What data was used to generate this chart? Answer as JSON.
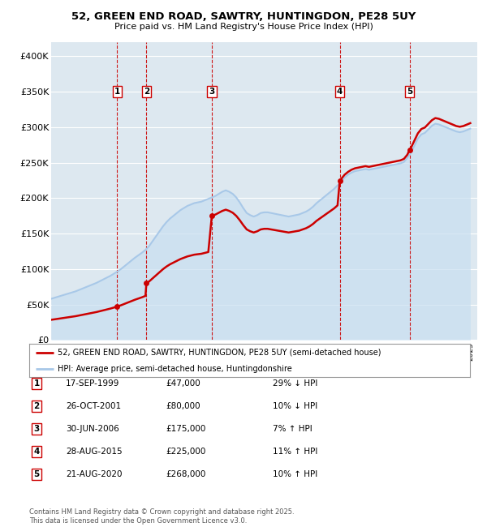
{
  "title": "52, GREEN END ROAD, SAWTRY, HUNTINGDON, PE28 5UY",
  "subtitle": "Price paid vs. HM Land Registry's House Price Index (HPI)",
  "legend_property": "52, GREEN END ROAD, SAWTRY, HUNTINGDON, PE28 5UY (semi-detached house)",
  "legend_hpi": "HPI: Average price, semi-detached house, Huntingdonshire",
  "footnote": "Contains HM Land Registry data © Crown copyright and database right 2025.\nThis data is licensed under the Open Government Licence v3.0.",
  "property_color": "#cc0000",
  "hpi_color": "#a8c8e8",
  "hpi_fill_color": "#c8dff0",
  "background_color": "#dde8f0",
  "ylim": [
    0,
    420000
  ],
  "yticks": [
    0,
    50000,
    100000,
    150000,
    200000,
    250000,
    300000,
    350000,
    400000
  ],
  "ytick_labels": [
    "£0",
    "£50K",
    "£100K",
    "£150K",
    "£200K",
    "£250K",
    "£300K",
    "£350K",
    "£400K"
  ],
  "transactions": [
    {
      "num": 1,
      "date": "17-SEP-1999",
      "price": 47000,
      "pct": "29%",
      "dir": "↓",
      "year": 1999.72
    },
    {
      "num": 2,
      "date": "26-OCT-2001",
      "price": 80000,
      "pct": "10%",
      "dir": "↓",
      "year": 2001.82
    },
    {
      "num": 3,
      "date": "30-JUN-2006",
      "price": 175000,
      "pct": "7%",
      "dir": "↑",
      "year": 2006.5
    },
    {
      "num": 4,
      "date": "28-AUG-2015",
      "price": 225000,
      "pct": "11%",
      "dir": "↑",
      "year": 2015.66
    },
    {
      "num": 5,
      "date": "21-AUG-2020",
      "price": 268000,
      "pct": "10%",
      "dir": "↑",
      "year": 2020.65
    }
  ],
  "hpi_years": [
    1995.0,
    1995.25,
    1995.5,
    1995.75,
    1996.0,
    1996.25,
    1996.5,
    1996.75,
    1997.0,
    1997.25,
    1997.5,
    1997.75,
    1998.0,
    1998.25,
    1998.5,
    1998.75,
    1999.0,
    1999.25,
    1999.5,
    1999.75,
    2000.0,
    2000.25,
    2000.5,
    2000.75,
    2001.0,
    2001.25,
    2001.5,
    2001.75,
    2002.0,
    2002.25,
    2002.5,
    2002.75,
    2003.0,
    2003.25,
    2003.5,
    2003.75,
    2004.0,
    2004.25,
    2004.5,
    2004.75,
    2005.0,
    2005.25,
    2005.5,
    2005.75,
    2006.0,
    2006.25,
    2006.5,
    2006.75,
    2007.0,
    2007.25,
    2007.5,
    2007.75,
    2008.0,
    2008.25,
    2008.5,
    2008.75,
    2009.0,
    2009.25,
    2009.5,
    2009.75,
    2010.0,
    2010.25,
    2010.5,
    2010.75,
    2011.0,
    2011.25,
    2011.5,
    2011.75,
    2012.0,
    2012.25,
    2012.5,
    2012.75,
    2013.0,
    2013.25,
    2013.5,
    2013.75,
    2014.0,
    2014.25,
    2014.5,
    2014.75,
    2015.0,
    2015.25,
    2015.5,
    2015.75,
    2016.0,
    2016.25,
    2016.5,
    2016.75,
    2017.0,
    2017.25,
    2017.5,
    2017.75,
    2018.0,
    2018.25,
    2018.5,
    2018.75,
    2019.0,
    2019.25,
    2019.5,
    2019.75,
    2020.0,
    2020.25,
    2020.5,
    2020.75,
    2021.0,
    2021.25,
    2021.5,
    2021.75,
    2022.0,
    2022.25,
    2022.5,
    2022.75,
    2023.0,
    2023.25,
    2023.5,
    2023.75,
    2024.0,
    2024.25,
    2024.5,
    2024.75,
    2025.0
  ],
  "hpi_values": [
    58000,
    59500,
    61000,
    62500,
    64000,
    65500,
    67000,
    68500,
    70500,
    72500,
    74500,
    76500,
    78500,
    80500,
    83000,
    85500,
    88000,
    90500,
    93500,
    96500,
    100000,
    104000,
    108000,
    112000,
    116000,
    119500,
    123000,
    127000,
    132000,
    139000,
    146000,
    153000,
    160000,
    166000,
    171000,
    175000,
    179000,
    183000,
    186000,
    189000,
    191000,
    193000,
    194000,
    195000,
    197000,
    199000,
    201000,
    203000,
    206000,
    209000,
    211000,
    209000,
    206000,
    201000,
    194000,
    186000,
    179000,
    176000,
    174000,
    176000,
    179000,
    180000,
    180000,
    179000,
    178000,
    177000,
    176000,
    175000,
    174000,
    175000,
    176000,
    177000,
    179000,
    181000,
    184000,
    188000,
    193000,
    197000,
    201000,
    205000,
    209000,
    213000,
    218000,
    223000,
    229000,
    233000,
    236000,
    238000,
    239000,
    240000,
    241000,
    240000,
    241000,
    242000,
    243000,
    244000,
    245000,
    246000,
    247000,
    248000,
    249000,
    251000,
    257000,
    264000,
    274000,
    284000,
    290000,
    292000,
    297000,
    302000,
    305000,
    304000,
    302000,
    300000,
    298000,
    296000,
    294000,
    293000,
    294000,
    296000,
    298000
  ],
  "xlim": [
    1995,
    2025.5
  ],
  "xtick_start": 1995,
  "xtick_end": 2026
}
